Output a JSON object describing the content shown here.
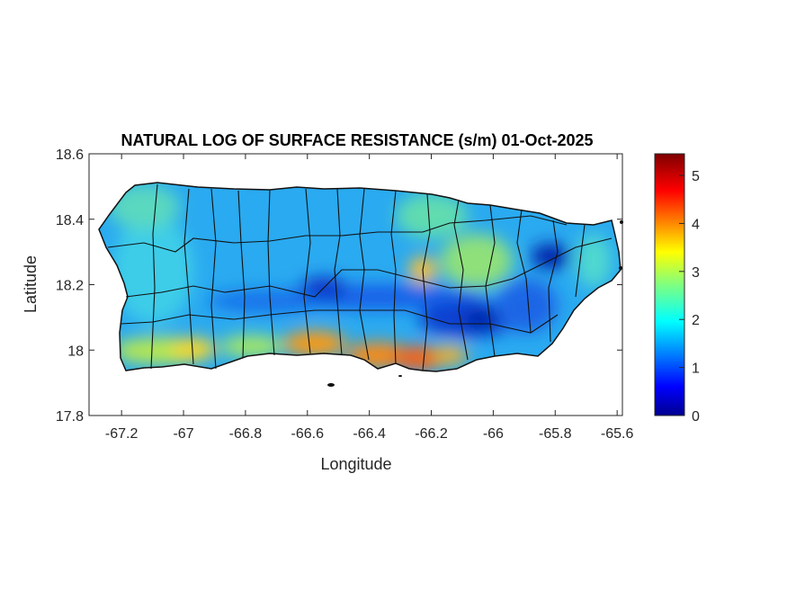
{
  "title": "NATURAL LOG OF SURFACE RESISTANCE (s/m) 01-Oct-2025",
  "xlabel": "Longitude",
  "ylabel": "Latitude",
  "x_axis": {
    "range": [
      -67.305,
      -65.583
    ],
    "ticks": [
      -67.2,
      -67,
      -66.8,
      -66.6,
      -66.4,
      -66.2,
      -66,
      -65.8,
      -65.6
    ],
    "tick_labels": [
      "-67.2",
      "-67",
      "-66.8",
      "-66.6",
      "-66.4",
      "-66.2",
      "-66",
      "-65.8",
      "-65.6"
    ]
  },
  "y_axis": {
    "range": [
      17.8,
      18.6
    ],
    "ticks": [
      17.8,
      18,
      18.2,
      18.4,
      18.6
    ],
    "tick_labels": [
      "17.8",
      "18",
      "18.2",
      "18.4",
      "18.6"
    ]
  },
  "colorbar": {
    "colormap": "jet",
    "range": [
      0,
      5.45
    ],
    "ticks": [
      0,
      1,
      2,
      3,
      4,
      5
    ],
    "tick_labels": [
      "0",
      "1",
      "2",
      "3",
      "4",
      "5"
    ]
  },
  "region": "Puerto Rico municipalities"
}
